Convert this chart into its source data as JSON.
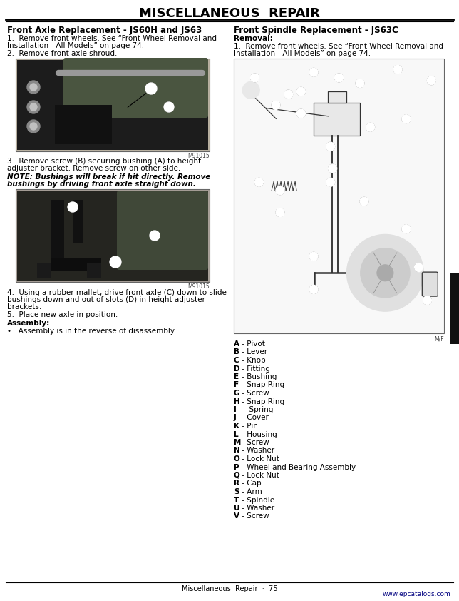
{
  "title": "MISCELLANEOUS  REPAIR",
  "left_section_heading": "Front Axle Replacement - JS60H and JS63",
  "right_section_heading": "Front Spindle Replacement - JS63C",
  "left_text_1a": "1.  Remove front wheels. See “Front Wheel Removal and",
  "left_text_1b": "Installation - All Models” on page 74.",
  "left_text_2": "2.  Remove front axle shroud.",
  "left_img1_label": "M91015",
  "left_text_3a": "3.  Remove screw (B) securing bushing (A) to height",
  "left_text_3b": "adjuster bracket. Remove screw on other side.",
  "left_note_1": "NOTE: Bushings will break if hit directly. Remove",
  "left_note_2": "bushings by driving front axle straight down.",
  "left_img2_label": "M91015",
  "left_text_4a": "4.  Using a rubber mallet, drive front axle (C) down to slide",
  "left_text_4b": "bushings down and out of slots (D) in height adjuster",
  "left_text_4c": "brackets.",
  "left_text_5": "5.  Place new axle in position.",
  "assembly_heading": "Assembly:",
  "assembly_text": "•   Assembly is in the reverse of disassembly.",
  "right_removal_heading": "Removal:",
  "right_text_1a": "1.  Remove front wheels. See “Front Wheel Removal and",
  "right_text_1b": "Installation - All Models” on page 74.",
  "right_img_label": "M/F",
  "parts_list": [
    [
      "A",
      " - Pivot"
    ],
    [
      "B",
      " - Lever"
    ],
    [
      "C",
      " - Knob"
    ],
    [
      "D",
      " - Fitting"
    ],
    [
      "E",
      " - Bushing"
    ],
    [
      "F",
      " - Snap Ring"
    ],
    [
      "G",
      " - Screw"
    ],
    [
      "H",
      " - Snap Ring"
    ],
    [
      "I",
      "  - Spring"
    ],
    [
      "J",
      " - Cover"
    ],
    [
      "K",
      " - Pin"
    ],
    [
      "L",
      " - Housing"
    ],
    [
      "M",
      " - Screw"
    ],
    [
      "N",
      " - Washer"
    ],
    [
      "O",
      " - Lock Nut"
    ],
    [
      "P",
      " - Wheel and Bearing Assembly"
    ],
    [
      "Q",
      " - Lock Nut"
    ],
    [
      "R",
      " - Cap"
    ],
    [
      "S",
      " - Arm"
    ],
    [
      "T",
      " - Spindle"
    ],
    [
      "U",
      " - Washer"
    ],
    [
      "V",
      " - Screw"
    ]
  ],
  "footer_text": "Miscellaneous  Repair  ·  75",
  "watermark": "www.epcatalogs.com",
  "bg_color": "#ffffff",
  "text_color": "#000000"
}
